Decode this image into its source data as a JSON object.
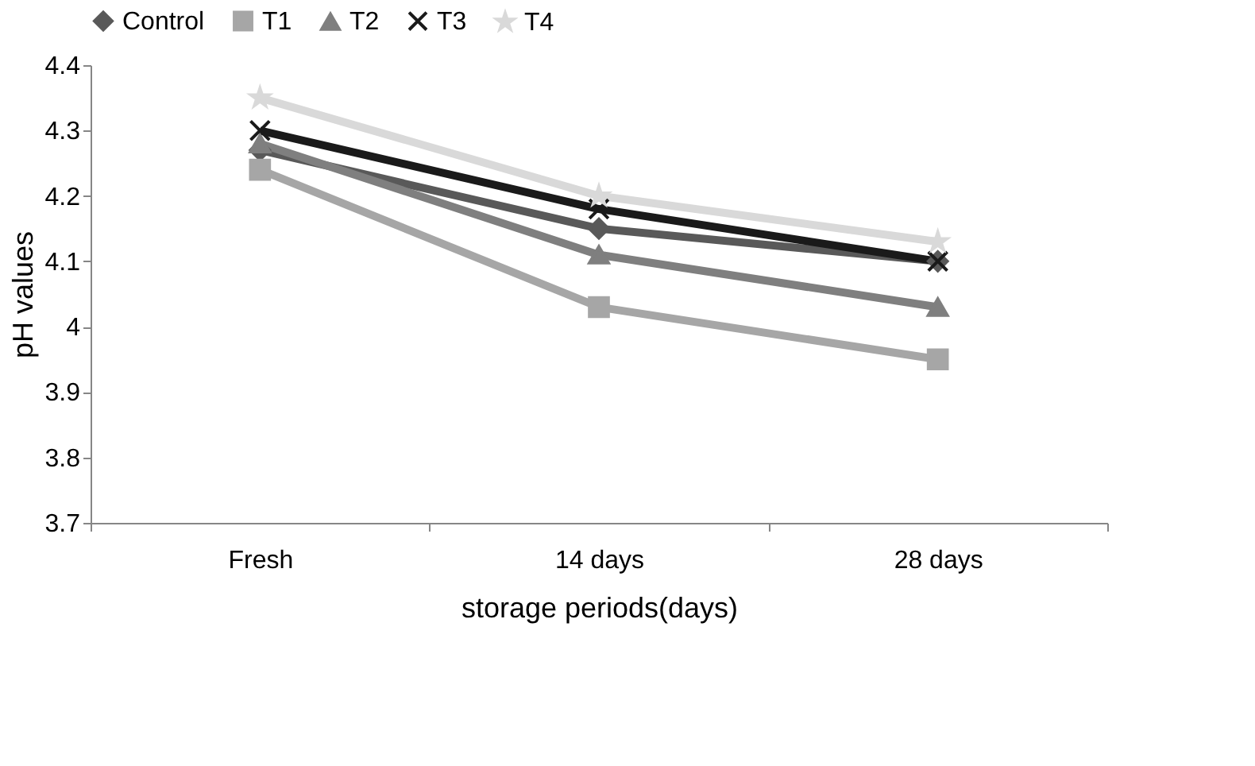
{
  "chart_data": {
    "type": "line",
    "xlabel": "storage periods(days)",
    "ylabel": "pH values",
    "categories": [
      "Fresh",
      "14 days",
      "28 days"
    ],
    "series": [
      {
        "name": "Control",
        "color": "#595959",
        "marker": "diamond",
        "values": [
          4.27,
          4.15,
          4.1
        ]
      },
      {
        "name": "T1",
        "color": "#a6a6a6",
        "marker": "square",
        "values": [
          4.24,
          4.03,
          3.95
        ]
      },
      {
        "name": "T2",
        "color": "#7f7f7f",
        "marker": "triangle",
        "values": [
          4.28,
          4.11,
          4.03
        ]
      },
      {
        "name": "T3",
        "color": "#1a1a1a",
        "marker": "cross",
        "values": [
          4.3,
          4.18,
          4.1
        ]
      },
      {
        "name": "T4",
        "color": "#d9d9d9",
        "marker": "star",
        "values": [
          4.35,
          4.2,
          4.13
        ]
      }
    ],
    "ylim": [
      3.7,
      4.4
    ],
    "yticks": [
      3.7,
      3.8,
      3.9,
      4,
      4.1,
      4.2,
      4.3,
      4.4
    ],
    "grid": false,
    "legend": "top",
    "line_style": "solid"
  }
}
